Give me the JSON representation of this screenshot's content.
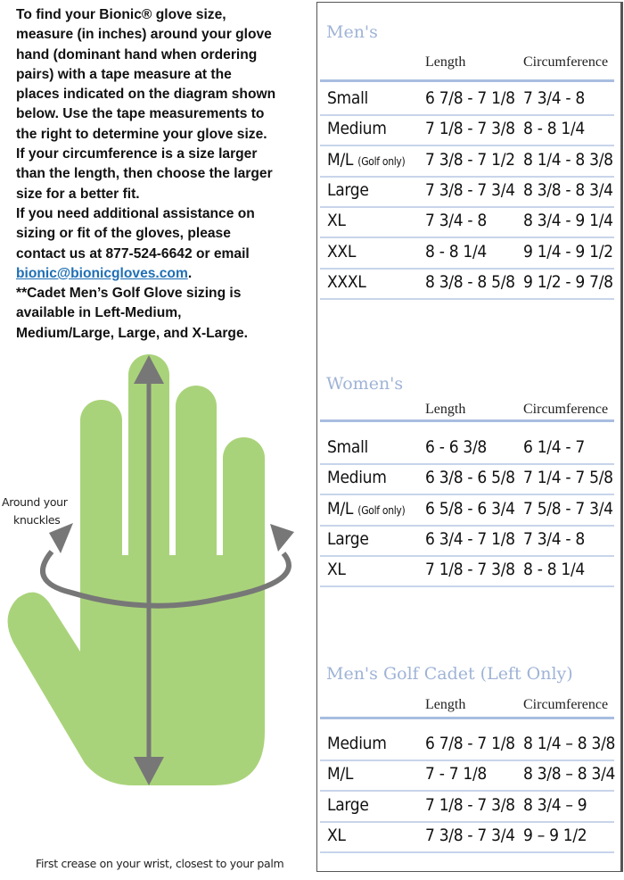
{
  "intro": {
    "lines": [
      "To find your Bionic® glove size,",
      "measure (in inches) around your glove",
      "hand (dominant hand when ordering",
      "pairs) with a tape measure at the",
      "places indicated on the diagram shown",
      "below. Use the tape measurements to",
      "the right to determine your glove size.",
      "If your circumference is a size larger",
      "than the length, then choose the larger",
      "size for a better fit.",
      "If you need additional assistance on",
      "sizing or fit of the gloves, please",
      "contact us at 877-524-6642 or email"
    ],
    "email": "bionic@bionicgloves.com",
    "email_suffix": ".",
    "cadet_lines": [
      "**Cadet Men’s Golf Glove sizing is",
      "available in Left-Medium,",
      "Medium/Large, Large, and X-Large."
    ]
  },
  "diagram": {
    "knuckles_label_1": "Around your",
    "knuckles_label_2": "knuckles",
    "wrist_label": "First crease on your wrist, closest to your palm",
    "hand_color": "#a9d37a",
    "arrow_color": "#777777"
  },
  "sections": [
    {
      "title": "Men's",
      "col_length": "Length",
      "col_circ": "Circumference",
      "rows": [
        {
          "size": "Small",
          "note": "",
          "length": "6 7/8 - 7 1/8",
          "circ": "7 3/4 - 8"
        },
        {
          "size": "Medium",
          "note": "",
          "length": "7 1/8 - 7 3/8",
          "circ": "8 - 8 1/4"
        },
        {
          "size": "M/L",
          "note": "(Golf only)",
          "length": "7 3/8 - 7 1/2",
          "circ": "8 1/4 - 8 3/8"
        },
        {
          "size": "Large",
          "note": "",
          "length": "7 3/8 - 7 3/4",
          "circ": "8 3/8 - 8 3/4"
        },
        {
          "size": "XL",
          "note": "",
          "length": "7 3/4 - 8",
          "circ": "8 3/4 - 9 1/4"
        },
        {
          "size": "XXL",
          "note": "",
          "length": "8 - 8 1/4",
          "circ": "9 1/4 - 9 1/2"
        },
        {
          "size": "XXXL",
          "note": "",
          "length": "8 3/8 - 8 5/8",
          "circ": "9 1/2 - 9 7/8"
        }
      ]
    },
    {
      "title": "Women's",
      "col_length": "Length",
      "col_circ": "Circumference",
      "rows": [
        {
          "size": "Small",
          "note": "",
          "length": "6 - 6 3/8",
          "circ": "6 1/4 - 7"
        },
        {
          "size": "Medium",
          "note": "",
          "length": "6 3/8 - 6 5/8",
          "circ": "7 1/4 - 7 5/8"
        },
        {
          "size": "M/L",
          "note": "(Golf only)",
          "length": "6 5/8 - 6 3/4",
          "circ": "7 5/8 - 7 3/4"
        },
        {
          "size": "Large",
          "note": "",
          "length": "6 3/4 - 7 1/8",
          "circ": "7 3/4 - 8"
        },
        {
          "size": "XL",
          "note": "",
          "length": "7 1/8 - 7 3/8",
          "circ": "8 - 8 1/4"
        }
      ]
    },
    {
      "title": "Men's Golf Cadet (Left Only)",
      "col_length": "Length",
      "col_circ": "Circumference",
      "rows": [
        {
          "size": "Medium",
          "note": "",
          "length": "6 7/8 - 7 1/8",
          "circ": "8 1/4 – 8 3/8"
        },
        {
          "size": "M/L",
          "note": "",
          "length": "7 - 7 1/8",
          "circ": "8 3/8 – 8 3/4"
        },
        {
          "size": "Large",
          "note": "",
          "length": " 7 1/8 - 7 3/8",
          "circ": "8 3/4 – 9"
        },
        {
          "size": "XL",
          "note": "",
          "length": "7 3/8 - 7 3/4",
          "circ": "9 – 9 1/2"
        }
      ]
    }
  ]
}
